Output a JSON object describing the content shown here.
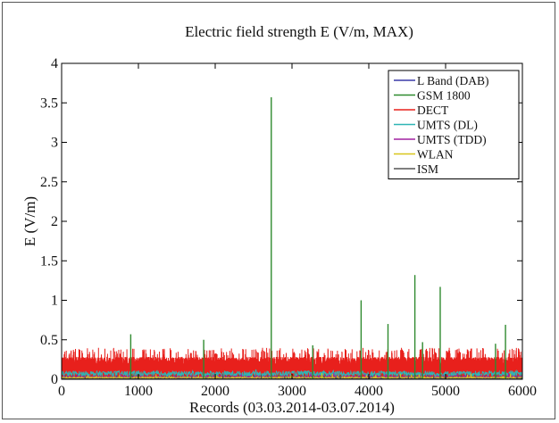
{
  "chart_data": {
    "type": "line",
    "title": "Electric field strength E (V/m, MAX)",
    "xlabel": "Records (03.03.2014-03.07.2014)",
    "ylabel": "E (V/m)",
    "xlim": [
      0,
      6000
    ],
    "ylim": [
      0,
      4
    ],
    "xticks": [
      0,
      1000,
      2000,
      3000,
      4000,
      5000,
      6000
    ],
    "yticks": [
      0,
      0.5,
      1,
      1.5,
      2,
      2.5,
      3,
      3.5,
      4
    ],
    "grid": false,
    "legend_position": "top-right",
    "series": [
      {
        "name": "L Band (DAB)",
        "color": "#3a3aa8",
        "baseline": 0.01
      },
      {
        "name": "GSM 1800",
        "color": "#2f8a2f",
        "baseline": 0.05,
        "peaks": [
          {
            "x": 900,
            "y": 0.57
          },
          {
            "x": 1850,
            "y": 0.5
          },
          {
            "x": 2730,
            "y": 3.57
          },
          {
            "x": 3270,
            "y": 0.43
          },
          {
            "x": 3900,
            "y": 1.0
          },
          {
            "x": 4250,
            "y": 0.7
          },
          {
            "x": 4600,
            "y": 1.32
          },
          {
            "x": 4700,
            "y": 0.47
          },
          {
            "x": 4930,
            "y": 1.17
          },
          {
            "x": 5650,
            "y": 0.45
          },
          {
            "x": 5780,
            "y": 0.69
          }
        ]
      },
      {
        "name": "DECT",
        "color": "#e8201c",
        "baseline": 0.2,
        "band_range": [
          0.1,
          0.38
        ]
      },
      {
        "name": "UMTS (DL)",
        "color": "#2fb5b5",
        "baseline": 0.07
      },
      {
        "name": "UMTS (TDD)",
        "color": "#a020a0",
        "baseline": 0.03
      },
      {
        "name": "WLAN",
        "color": "#d8c61a",
        "baseline": 0.02
      },
      {
        "name": "ISM",
        "color": "#555555",
        "baseline": 0.005
      }
    ]
  }
}
